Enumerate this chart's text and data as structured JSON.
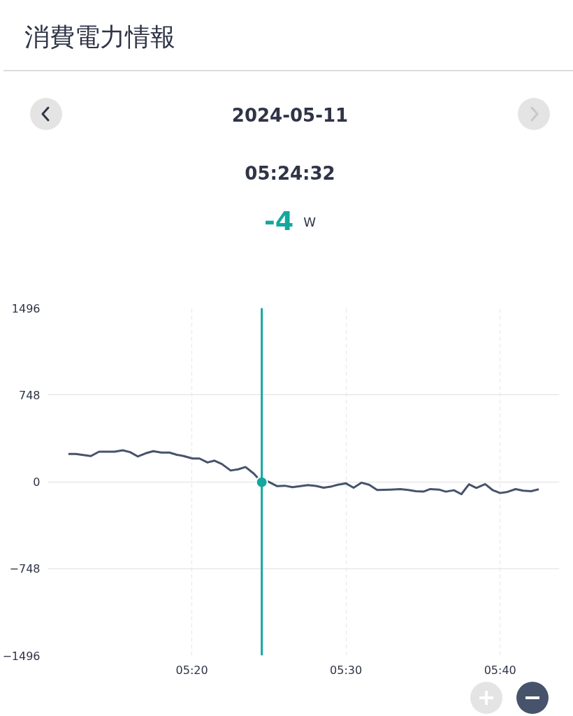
{
  "chart_data": {
    "type": "line",
    "title": "消費電力情報",
    "subtitle": "2024-05-11",
    "x": [
      5.1997,
      5.2078,
      5.224,
      5.2328,
      5.2497,
      5.2585,
      5.2665,
      5.2747,
      5.2833,
      5.2915,
      5.3003,
      5.309,
      5.3172,
      5.3245,
      5.334,
      5.3415,
      5.3502,
      5.3577,
      5.3657,
      5.3752,
      5.3832,
      5.3913,
      5.4002,
      5.4089,
      5.4157,
      5.4252,
      5.4338,
      5.442,
      5.4507,
      5.4588,
      5.4677,
      5.4757,
      5.4845,
      5.4912,
      5.5,
      5.5082,
      5.5168,
      5.525,
      5.5337,
      5.5485,
      5.5587,
      5.5675,
      5.5755,
      5.5837,
      5.5912,
      5.6005,
      5.608,
      5.6167,
      5.6248,
      5.633,
      5.641,
      5.6505,
      5.6585,
      5.6667,
      5.6748,
      5.6835,
      5.6917,
      5.7003,
      5.7085
    ],
    "series": [
      {
        "color": "#47536b",
        "values": [
          239,
          239,
          221,
          259,
          259,
          271,
          255,
          218,
          245,
          263,
          251,
          251,
          232,
          221,
          200,
          200,
          166,
          182,
          153,
          97,
          107,
          127,
          71,
          -4,
          2,
          -37,
          -34,
          -47,
          -37,
          -28,
          -36,
          -51,
          -40,
          -26,
          -14,
          -51,
          -8,
          -26,
          -71,
          -67,
          -63,
          -71,
          -81,
          -85,
          -63,
          -67,
          -85,
          -73,
          -107,
          -22,
          -53,
          -20,
          -71,
          -97,
          -87,
          -63,
          -77,
          -81,
          -65
        ]
      },
      {
        "type": "scatter",
        "x": [
          5.4089
        ],
        "color": "#13a89e",
        "values": [
          -4
        ]
      }
    ],
    "xlim": [
      5.1775,
      5.7308
    ],
    "ylim": [
      -1496,
      1496
    ],
    "xticks": [
      {
        "value": 5.3333,
        "label": "05:20"
      },
      {
        "value": 5.5,
        "label": "05:30"
      },
      {
        "value": 5.6667,
        "label": "05:40"
      }
    ],
    "yticks": [
      -1496,
      -748,
      0,
      748,
      1496
    ],
    "grid": true,
    "ref_lines": [
      {
        "axis": "x",
        "value": 5.4089,
        "color": "#13a89e"
      }
    ],
    "annotations": [
      "05:24:32",
      "-4",
      "W"
    ]
  }
}
